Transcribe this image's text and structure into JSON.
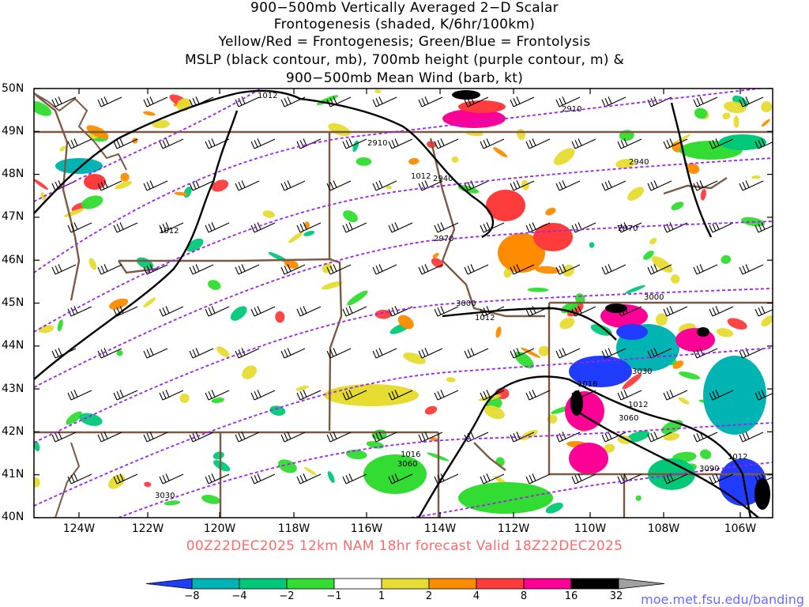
{
  "title": {
    "line1": "900−500mb Vertically Averaged 2−D Scalar",
    "line2": "Frontogenesis (shaded, K/6hr/100km)",
    "line3": "Yellow/Red = Frontogenesis;  Green/Blue = Frontolysis",
    "line4": "MSLP (black contour, mb), 700mb height (purple contour, m) &",
    "line5": "900−500mb Mean Wind (barb, kt)"
  },
  "lat_labels": [
    "50N",
    "49N",
    "48N",
    "47N",
    "46N",
    "45N",
    "44N",
    "43N",
    "42N",
    "41N",
    "40N"
  ],
  "lon_labels": [
    "124W",
    "122W",
    "120W",
    "118W",
    "116W",
    "114W",
    "112W",
    "110W",
    "108W",
    "106W"
  ],
  "valid": "00Z22DEC2025 12km NAM 18hr forecast Valid 18Z22DEC2025",
  "colorbar": {
    "labels": [
      "−8",
      "−4",
      "−2",
      "−1",
      "1",
      "2",
      "4",
      "8",
      "16",
      "32"
    ],
    "colors": [
      "#1f3cff",
      "#00b4b4",
      "#00c878",
      "#32dc32",
      "#ffffff",
      "#e6dc32",
      "#ff8c00",
      "#ff3c3c",
      "#ff0096",
      "#000000",
      "#a0a0a0"
    ]
  },
  "contour_labels": {
    "mslp": [
      "1012",
      "1012",
      "1012",
      "1012",
      "1016",
      "1012",
      "1016",
      "1012"
    ],
    "height": [
      "2910",
      "2910",
      "2940",
      "2940",
      "2970",
      "2970",
      "3000",
      "3000",
      "3030",
      "3060",
      "3060",
      "3090",
      "3030"
    ]
  },
  "credit": "moe.met.fsu.edu/banding"
}
